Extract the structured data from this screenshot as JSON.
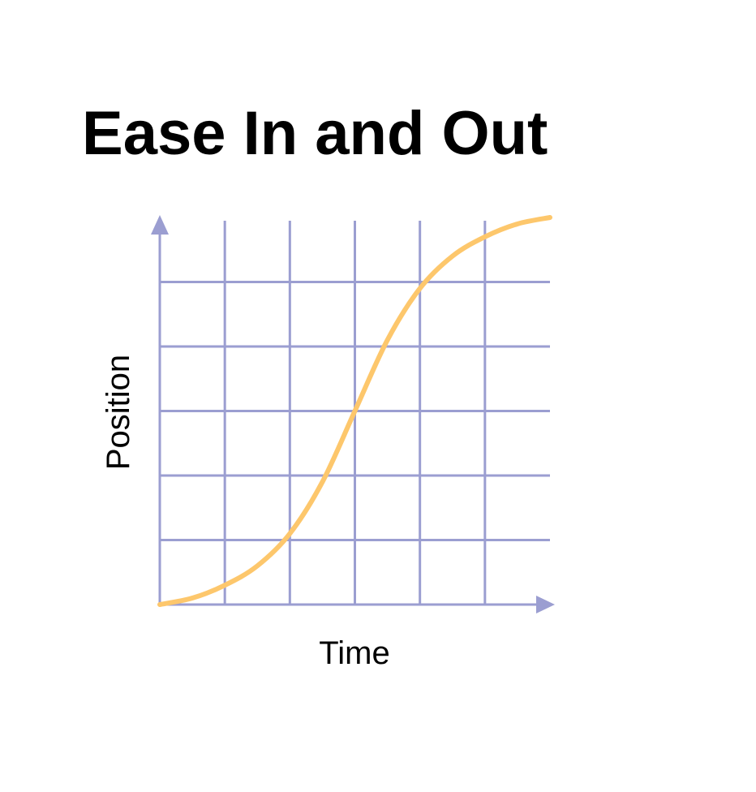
{
  "chart_data": {
    "type": "line",
    "title": "Ease In and Out",
    "xlabel": "Time",
    "ylabel": "Position",
    "xlim": [
      0,
      6
    ],
    "ylim": [
      0,
      6
    ],
    "grid": true,
    "x_ticks": [
      1,
      2,
      3,
      4,
      5
    ],
    "y_ticks": [
      1,
      2,
      3,
      4,
      5
    ],
    "series": [
      {
        "x": [
          0,
          0.5,
          1,
          1.5,
          2,
          2.5,
          3,
          3.5,
          4,
          4.5,
          5,
          5.5,
          6
        ],
        "values": [
          0,
          0.1,
          0.3,
          0.6,
          1.1,
          1.9,
          3.0,
          4.1,
          4.9,
          5.4,
          5.7,
          5.9,
          6.0
        ],
        "color": "#fdc76c"
      }
    ]
  },
  "colors": {
    "grid": "#9b9ed1",
    "axis": "#9b9ed1",
    "curve": "#fdc76c"
  }
}
